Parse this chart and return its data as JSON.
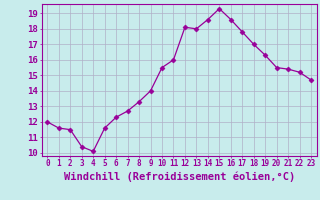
{
  "x": [
    0,
    1,
    2,
    3,
    4,
    5,
    6,
    7,
    8,
    9,
    10,
    11,
    12,
    13,
    14,
    15,
    16,
    17,
    18,
    19,
    20,
    21,
    22,
    23
  ],
  "y": [
    12.0,
    11.6,
    11.5,
    10.4,
    10.1,
    11.6,
    12.3,
    12.7,
    13.3,
    14.0,
    15.5,
    16.0,
    18.1,
    18.0,
    18.6,
    19.3,
    18.6,
    17.8,
    17.0,
    16.3,
    15.5,
    15.4,
    15.2,
    14.7
  ],
  "line_color": "#990099",
  "marker": "D",
  "marker_size": 2.5,
  "bg_color": "#c8ecec",
  "grid_color": "#b0b0c8",
  "xlabel": "Windchill (Refroidissement éolien,°C)",
  "ylim": [
    9.8,
    19.6
  ],
  "xlim": [
    -0.5,
    23.5
  ],
  "yticks": [
    10,
    11,
    12,
    13,
    14,
    15,
    16,
    17,
    18,
    19
  ],
  "xticks": [
    0,
    1,
    2,
    3,
    4,
    5,
    6,
    7,
    8,
    9,
    10,
    11,
    12,
    13,
    14,
    15,
    16,
    17,
    18,
    19,
    20,
    21,
    22,
    23
  ]
}
